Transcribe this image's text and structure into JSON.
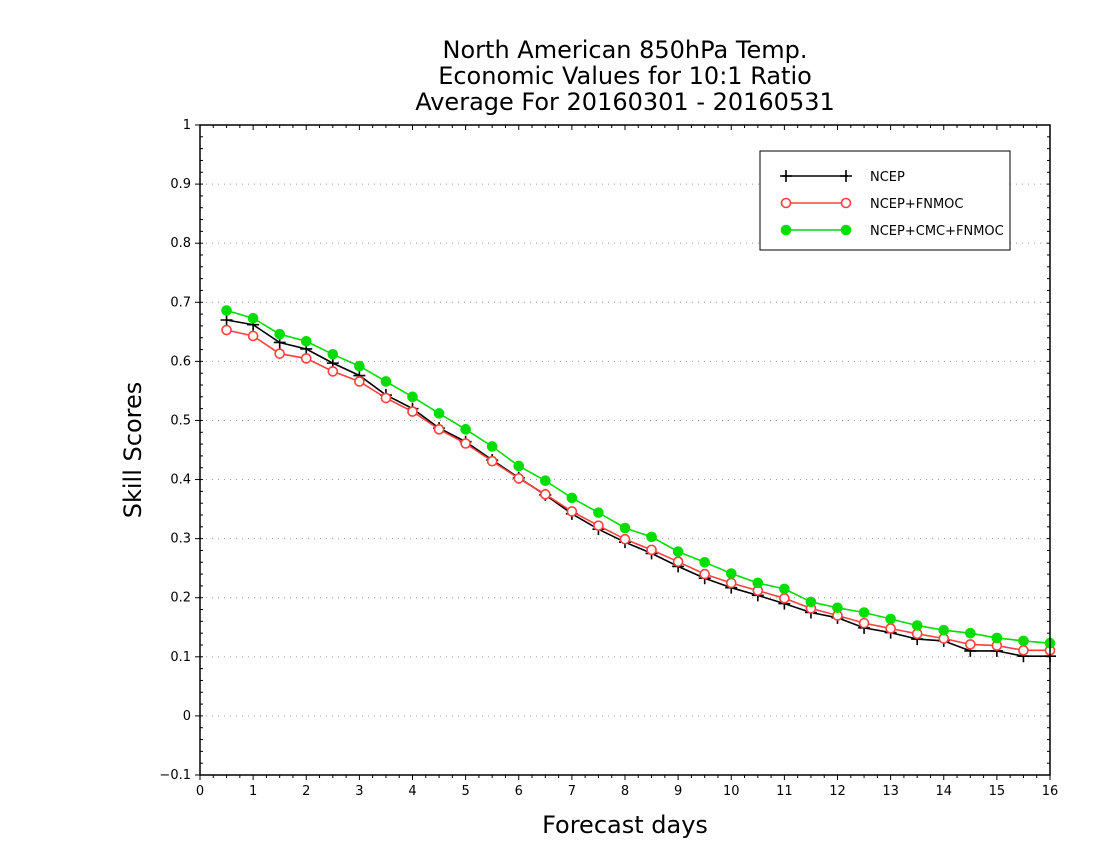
{
  "chart_data": {
    "type": "line",
    "title_lines": [
      "North American 850hPa Temp.",
      "Economic Values for 10:1 Ratio",
      "Average For 20160301 - 20160531"
    ],
    "xlabel": "Forecast days",
    "ylabel": "Skill Scores",
    "xlim": [
      0,
      16
    ],
    "ylim": [
      -0.1,
      1
    ],
    "x_ticks": [
      0,
      1,
      2,
      3,
      4,
      5,
      6,
      7,
      8,
      9,
      10,
      11,
      12,
      13,
      14,
      15,
      16
    ],
    "x_tick_labels": [
      "0",
      "1",
      "2",
      "3",
      "4",
      "5",
      "6",
      "7",
      "8",
      "9",
      "10",
      "11",
      "12",
      "13",
      "14",
      "15",
      "16"
    ],
    "y_ticks": [
      -0.1,
      0,
      0.1,
      0.2,
      0.3,
      0.4,
      0.5,
      0.6,
      0.7,
      0.8,
      0.9,
      1
    ],
    "y_tick_labels": [
      "−0.1",
      "0",
      "0.1",
      "0.2",
      "0.3",
      "0.4",
      "0.5",
      "0.6",
      "0.7",
      "0.8",
      "0.9",
      "1"
    ],
    "grid": "horizontal dotted",
    "legend_position": "top-right",
    "x": [
      0.5,
      1,
      1.5,
      2,
      2.5,
      3,
      3.5,
      4,
      4.5,
      5,
      5.5,
      6,
      6.5,
      7,
      7.5,
      8,
      8.5,
      9,
      9.5,
      10,
      10.5,
      11,
      11.5,
      12,
      12.5,
      13,
      13.5,
      14,
      14.5,
      15,
      15.5,
      16
    ],
    "series": [
      {
        "name": "NCEP",
        "color": "#000000",
        "marker": "plus",
        "values": [
          0.67,
          0.662,
          0.632,
          0.621,
          0.597,
          0.576,
          0.543,
          0.52,
          0.487,
          0.464,
          0.433,
          0.403,
          0.374,
          0.342,
          0.316,
          0.294,
          0.275,
          0.253,
          0.233,
          0.217,
          0.204,
          0.19,
          0.175,
          0.166,
          0.149,
          0.141,
          0.13,
          0.127,
          0.11,
          0.11,
          0.101,
          0.101
        ]
      },
      {
        "name": "NCEP+FNMOC",
        "color": "#ff4040",
        "marker": "open-circle",
        "values": [
          0.653,
          0.643,
          0.613,
          0.605,
          0.583,
          0.566,
          0.538,
          0.515,
          0.485,
          0.461,
          0.431,
          0.402,
          0.375,
          0.346,
          0.322,
          0.299,
          0.281,
          0.261,
          0.24,
          0.225,
          0.212,
          0.199,
          0.182,
          0.17,
          0.157,
          0.148,
          0.139,
          0.131,
          0.121,
          0.119,
          0.111,
          0.111
        ]
      },
      {
        "name": "NCEP+CMC+FNMOC",
        "color": "#00dd00",
        "marker": "filled-circle",
        "values": [
          0.686,
          0.673,
          0.646,
          0.634,
          0.612,
          0.592,
          0.566,
          0.54,
          0.512,
          0.485,
          0.456,
          0.423,
          0.398,
          0.369,
          0.344,
          0.318,
          0.303,
          0.278,
          0.26,
          0.241,
          0.225,
          0.215,
          0.193,
          0.183,
          0.175,
          0.164,
          0.153,
          0.145,
          0.14,
          0.132,
          0.127,
          0.123
        ]
      }
    ]
  }
}
